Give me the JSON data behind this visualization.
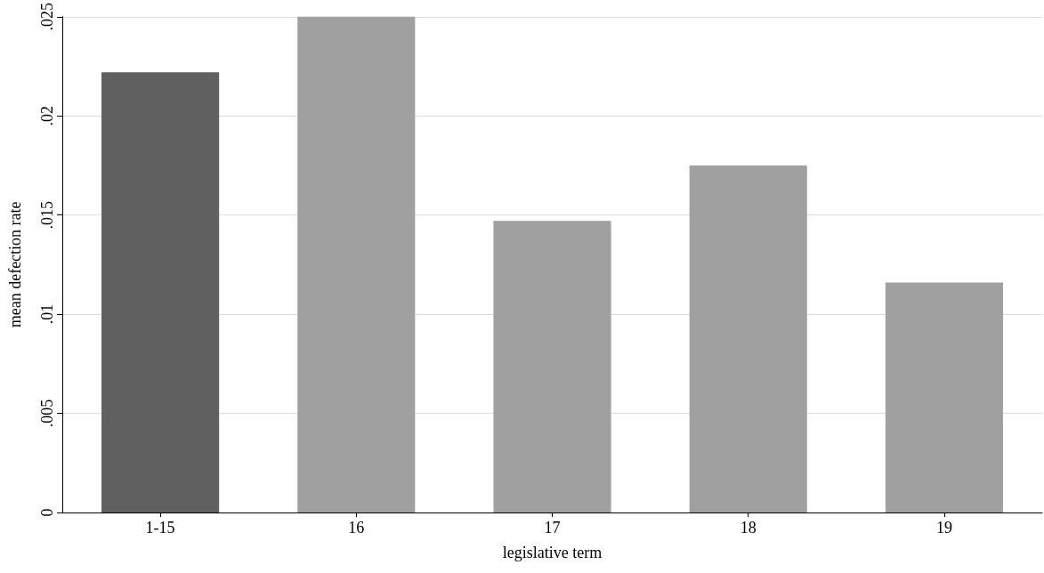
{
  "chart_data": {
    "type": "bar",
    "xlabel": "legislative term",
    "ylabel": "mean defection rate",
    "categories": [
      "1-15",
      "16",
      "17",
      "18",
      "19"
    ],
    "values": [
      0.0222,
      0.025,
      0.0147,
      0.0175,
      0.0116
    ],
    "colors": [
      "#606060",
      "#a0a0a0",
      "#a0a0a0",
      "#a0a0a0",
      "#a0a0a0"
    ],
    "ylim": [
      0,
      0.025
    ],
    "yticks": [
      {
        "value": 0,
        "label": "0"
      },
      {
        "value": 0.005,
        "label": ".005"
      },
      {
        "value": 0.01,
        "label": ".01"
      },
      {
        "value": 0.015,
        "label": ".015"
      },
      {
        "value": 0.02,
        "label": ".02"
      },
      {
        "value": 0.025,
        "label": ".025"
      }
    ],
    "grid": "y"
  }
}
